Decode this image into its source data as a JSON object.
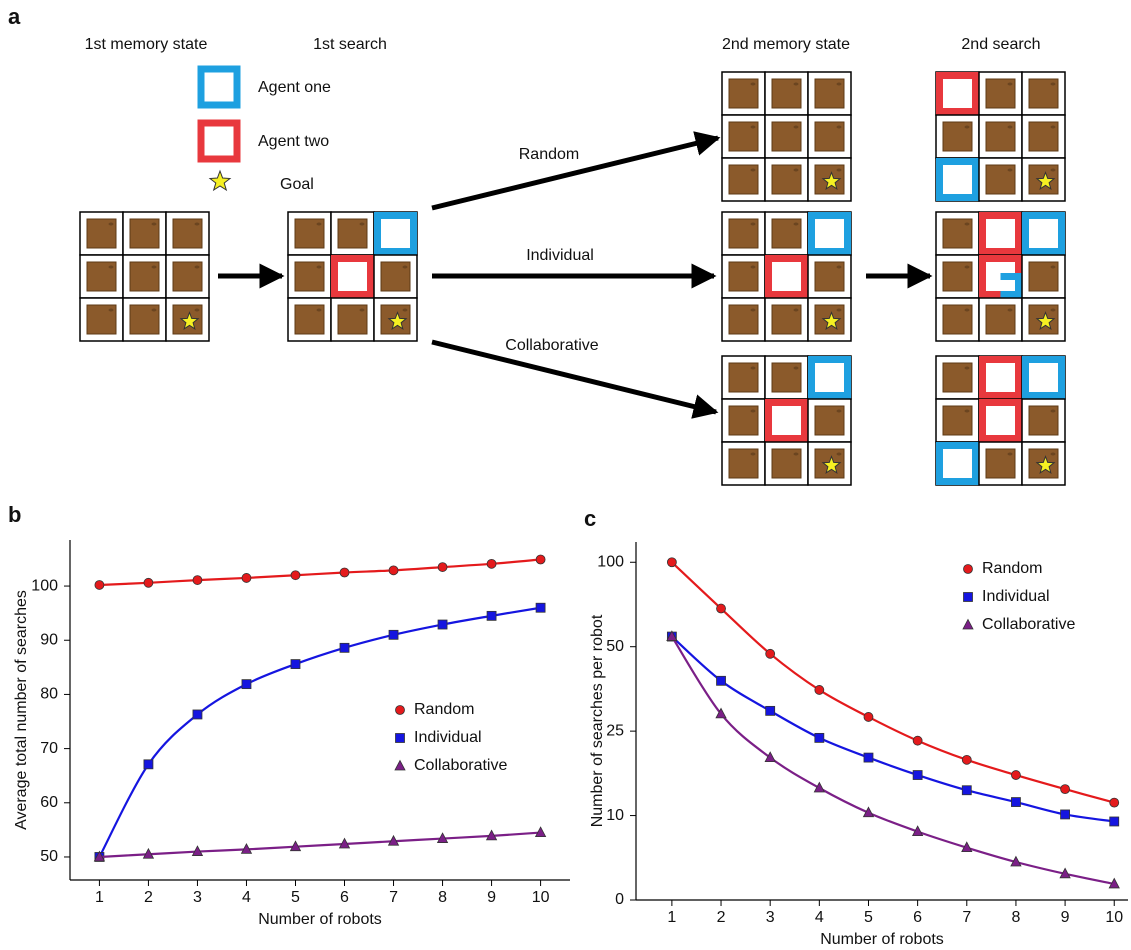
{
  "panel_a": {
    "label": "a",
    "headers": [
      "1st memory state",
      "1st search",
      "2nd memory state",
      "2nd search"
    ],
    "legend": [
      "Agent one",
      "Agent two",
      "Goal"
    ],
    "arrows": [
      "Random",
      "Individual",
      "Collaborative"
    ]
  },
  "chart_data": [
    {
      "type": "line",
      "panel_label": "b",
      "x_label": "Number of robots",
      "y_label": "Average total number of searches",
      "x": [
        1,
        2,
        3,
        4,
        5,
        6,
        7,
        8,
        9,
        10
      ],
      "xlim": [
        0.4,
        10.6
      ],
      "xticks": [
        1,
        2,
        3,
        4,
        5,
        6,
        7,
        8,
        9,
        10
      ],
      "ylim": [
        45.75,
        108.5
      ],
      "yticks": [
        50,
        60,
        70,
        80,
        90,
        100
      ],
      "legend": "center-right",
      "series": [
        {
          "name": "Random",
          "color": "#e41a1c",
          "marker": "circle",
          "values": [
            100.2,
            100.6,
            101.1,
            101.5,
            102.0,
            102.5,
            102.9,
            103.5,
            104.1,
            104.9
          ]
        },
        {
          "name": "Individual",
          "color": "#1515e0",
          "marker": "square",
          "values": [
            50,
            67.1,
            76.3,
            81.9,
            85.6,
            88.6,
            91.0,
            92.9,
            94.5,
            96.0
          ]
        },
        {
          "name": "Collaborative",
          "color": "#7b1f87",
          "marker": "triangle",
          "values": [
            50,
            50.5,
            51.0,
            51.4,
            51.9,
            52.4,
            52.9,
            53.4,
            53.9,
            54.5
          ]
        }
      ]
    },
    {
      "type": "line",
      "panel_label": "c",
      "x_label": "Number of robots",
      "y_label": "Number of searches per robot",
      "x": [
        1,
        2,
        3,
        4,
        5,
        6,
        7,
        8,
        9,
        10
      ],
      "xlim": [
        0.27,
        10.28
      ],
      "xticks": [
        1,
        2,
        3,
        4,
        5,
        6,
        7,
        8,
        9,
        10
      ],
      "ylim": [
        0,
        112
      ],
      "yticks": [
        0,
        10,
        25,
        50,
        100
      ],
      "yscale": "tick-interpolated",
      "legend": "upper-right",
      "series": [
        {
          "name": "Random",
          "color": "#e41a1c",
          "marker": "circle",
          "values": [
            100,
            72.6,
            47.9,
            37.2,
            29.2,
            23.3,
            19.9,
            17.2,
            14.7,
            12.3
          ]
        },
        {
          "name": "Individual",
          "color": "#1515e0",
          "marker": "square",
          "values": [
            56.0,
            39.9,
            31.0,
            23.8,
            20.3,
            17.2,
            14.5,
            12.4,
            10.2,
            9.3
          ]
        },
        {
          "name": "Collaborative",
          "color": "#7b1f87",
          "marker": "triangle",
          "values": [
            56.0,
            30.1,
            20.3,
            14.9,
            10.5,
            8.1,
            6.2,
            4.5,
            3.1,
            1.9
          ]
        }
      ]
    }
  ]
}
